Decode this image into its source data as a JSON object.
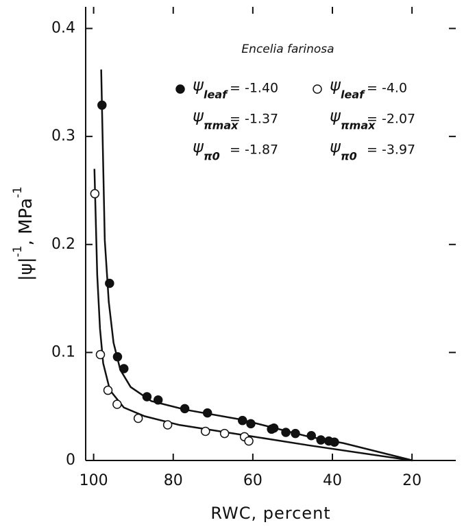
{
  "chart_data": {
    "type": "scatter",
    "title": "Encelia farinosa",
    "x_label": "RWC, percent",
    "y_label": {
      "main": "|ψ|",
      "exp1": "-1",
      "unit": ", MPa",
      "exp2": "-1"
    },
    "xlim": [
      102,
      9
    ],
    "xticks": [
      100,
      80,
      60,
      40,
      20
    ],
    "ylim": [
      0,
      0.42
    ],
    "yticks": [
      0,
      0.1,
      0.2,
      0.3,
      0.4
    ],
    "legend_symbol": "ψ",
    "color": "#111111",
    "series": [
      {
        "marker": "filled",
        "legend": [
          {
            "sub": "leaf",
            "value": "= -1.40"
          },
          {
            "sub": "πmax",
            "value": "= -1.37"
          },
          {
            "sub": "π0",
            "value": "= -1.87"
          }
        ],
        "x": [
          97.9,
          96.0,
          94.0,
          92.4,
          86.6,
          83.8,
          77.1,
          71.4,
          62.6,
          60.5,
          55.3,
          54.7,
          51.7,
          49.3,
          45.3,
          42.9,
          40.9,
          39.5
        ],
        "y": [
          0.329,
          0.164,
          0.096,
          0.085,
          0.059,
          0.056,
          0.048,
          0.044,
          0.037,
          0.034,
          0.029,
          0.03,
          0.026,
          0.025,
          0.023,
          0.019,
          0.018,
          0.017
        ],
        "fit_x": [
          98.1,
          97.2,
          96.2,
          95.0,
          93.3,
          90.7,
          85.5,
          76.9,
          63.1,
          45.9,
          37.2,
          19.8
        ],
        "fit_y": [
          0.362,
          0.204,
          0.147,
          0.109,
          0.084,
          0.068,
          0.055,
          0.047,
          0.038,
          0.022,
          0.016,
          0
        ]
      },
      {
        "marker": "open",
        "legend": [
          {
            "sub": "leaf",
            "value": "= -4.0"
          },
          {
            "sub": "πmax",
            "value": "= -2.07"
          },
          {
            "sub": "π0",
            "value": "= -3.97"
          }
        ],
        "x": [
          99.7,
          98.3,
          96.4,
          94.1,
          88.8,
          81.4,
          71.9,
          67.1,
          62.1,
          61.0
        ],
        "y": [
          0.247,
          0.098,
          0.065,
          0.052,
          0.039,
          0.033,
          0.027,
          0.025,
          0.022,
          0.018
        ],
        "fit_x": [
          99.8,
          99.1,
          98.4,
          97.6,
          95.9,
          92.4,
          87.2,
          78.6,
          61.4,
          45.9,
          20
        ],
        "fit_y": [
          0.27,
          0.172,
          0.122,
          0.09,
          0.065,
          0.049,
          0.041,
          0.033,
          0.023,
          0.014,
          0
        ]
      }
    ]
  }
}
